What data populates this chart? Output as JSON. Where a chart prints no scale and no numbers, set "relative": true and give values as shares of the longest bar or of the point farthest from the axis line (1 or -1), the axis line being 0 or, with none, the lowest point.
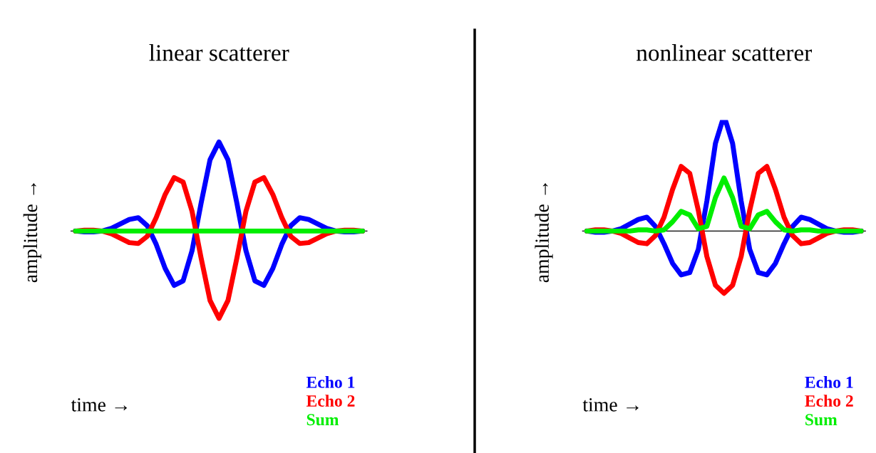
{
  "chart_data": [
    {
      "type": "line",
      "title": "linear scatterer",
      "xlabel": "time →",
      "ylabel": "amplitude →",
      "relative": true,
      "legend": "bottom right",
      "marker": "none",
      "line_style": "solid",
      "categories": [
        null,
        null,
        null,
        null,
        null,
        null,
        null,
        null,
        null,
        null,
        null,
        null,
        null,
        null,
        null,
        null,
        null,
        null,
        null,
        null,
        null,
        null,
        null,
        null,
        null,
        null,
        null,
        null,
        null,
        null,
        null,
        null,
        null
      ],
      "series": [
        {
          "name": "Echo 1",
          "color": "#0000ff",
          "values": [
            0,
            -0.01,
            -0.01,
            0,
            0.03,
            0.08,
            0.13,
            0.15,
            0.06,
            -0.15,
            -0.42,
            -0.61,
            -0.56,
            -0.22,
            0.31,
            0.8,
            1.0,
            0.8,
            0.31,
            -0.22,
            -0.56,
            -0.61,
            -0.42,
            -0.15,
            0.06,
            0.15,
            0.13,
            0.08,
            0.03,
            0,
            -0.01,
            -0.01,
            0
          ]
        },
        {
          "name": "Echo 2",
          "color": "#ff0000",
          "values": [
            0,
            0.01,
            0.01,
            0,
            -0.03,
            -0.08,
            -0.13,
            -0.14,
            -0.06,
            0.15,
            0.41,
            0.6,
            0.55,
            0.22,
            -0.3,
            -0.78,
            -0.98,
            -0.78,
            -0.3,
            0.22,
            0.55,
            0.6,
            0.41,
            0.15,
            -0.06,
            -0.14,
            -0.13,
            -0.08,
            -0.03,
            0,
            0.01,
            0.01,
            0
          ]
        },
        {
          "name": "Sum",
          "color": "#00ee00",
          "values": [
            0,
            0,
            0,
            0,
            0,
            0,
            0,
            0,
            0,
            0,
            0,
            0,
            0,
            0,
            0,
            0,
            0,
            0,
            0,
            0,
            0,
            0,
            0,
            0,
            0,
            0,
            0,
            0,
            0,
            0,
            0,
            0,
            0
          ]
        }
      ]
    },
    {
      "type": "line",
      "title": "nonlinear scatterer",
      "xlabel": "time →",
      "ylabel": "amplitude →",
      "relative": true,
      "legend": "bottom right",
      "marker": "none",
      "line_style": "solid",
      "categories": [
        null,
        null,
        null,
        null,
        null,
        null,
        null,
        null,
        null,
        null,
        null,
        null,
        null,
        null,
        null,
        null,
        null,
        null,
        null,
        null,
        null,
        null,
        null,
        null,
        null,
        null,
        null,
        null,
        null,
        null,
        null,
        null,
        null
      ],
      "series": [
        {
          "name": "Echo 1",
          "color": "#0000ff",
          "values": [
            0,
            -0.01,
            -0.01,
            0,
            0.02,
            0.06,
            0.1,
            0.12,
            0.04,
            -0.11,
            -0.28,
            -0.38,
            -0.36,
            -0.16,
            0.26,
            0.76,
            1.0,
            0.76,
            0.26,
            -0.16,
            -0.36,
            -0.38,
            -0.28,
            -0.11,
            0.04,
            0.12,
            0.1,
            0.06,
            0.02,
            0,
            -0.01,
            -0.01,
            0
          ]
        },
        {
          "name": "Echo 2",
          "color": "#ff0000",
          "values": [
            0,
            0.01,
            0.01,
            0,
            -0.02,
            -0.06,
            -0.1,
            -0.11,
            -0.04,
            0.12,
            0.36,
            0.56,
            0.5,
            0.18,
            -0.22,
            -0.47,
            -0.54,
            -0.47,
            -0.22,
            0.18,
            0.5,
            0.56,
            0.36,
            0.12,
            -0.04,
            -0.11,
            -0.1,
            -0.06,
            -0.02,
            0,
            0.01,
            0.01,
            0
          ]
        },
        {
          "name": "Sum",
          "color": "#00ee00",
          "values": [
            0,
            0,
            0,
            0,
            0,
            0,
            0.01,
            0.01,
            0,
            0.01,
            0.08,
            0.17,
            0.14,
            0.02,
            0.04,
            0.29,
            0.46,
            0.29,
            0.04,
            0.02,
            0.14,
            0.17,
            0.08,
            0.01,
            0,
            0.01,
            0.01,
            0,
            0,
            0,
            0,
            0,
            0
          ]
        }
      ]
    }
  ]
}
